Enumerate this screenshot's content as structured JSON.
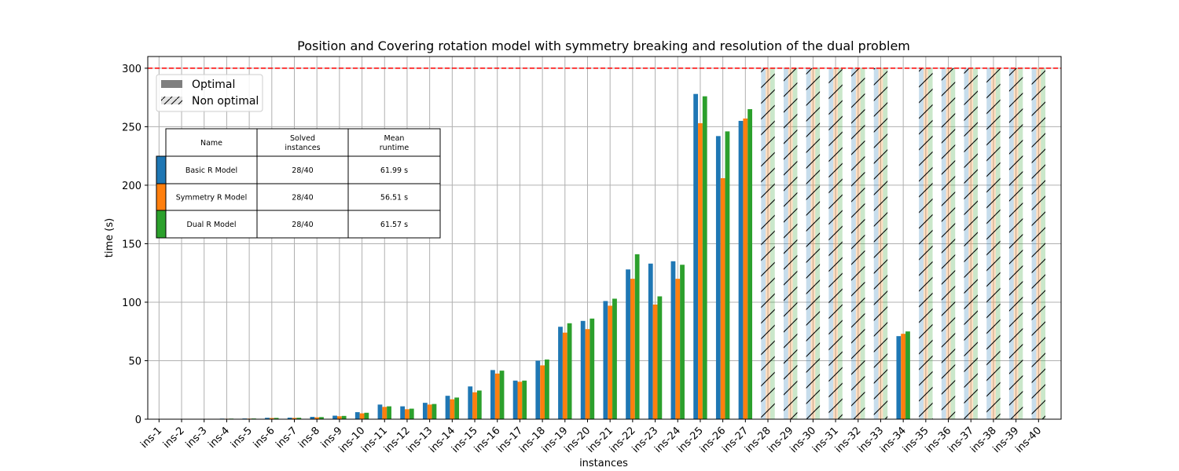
{
  "chart_data": {
    "type": "bar",
    "title": "Position and Covering rotation model with symmetry breaking and resolution of the dual problem",
    "xlabel": "instances",
    "ylabel": "time (s)",
    "ylim": [
      0,
      310
    ],
    "yticks": [
      0,
      50,
      100,
      150,
      200,
      250,
      300
    ],
    "grid": true,
    "timeout_line": 300,
    "categories": [
      "ins-1",
      "ins-2",
      "ins-3",
      "ins-4",
      "ins-5",
      "ins-6",
      "ins-7",
      "ins-8",
      "ins-9",
      "ins-10",
      "ins-11",
      "ins-12",
      "ins-13",
      "ins-14",
      "ins-15",
      "ins-16",
      "ins-17",
      "ins-18",
      "ins-19",
      "ins-20",
      "ins-21",
      "ins-22",
      "ins-23",
      "ins-24",
      "ins-25",
      "ins-26",
      "ins-27",
      "ins-28",
      "ins-29",
      "ins-30",
      "ins-31",
      "ins-32",
      "ins-33",
      "ins-34",
      "ins-35",
      "ins-36",
      "ins-37",
      "ins-38",
      "ins-39",
      "ins-40"
    ],
    "non_optimal_instances": [
      "ins-28",
      "ins-29",
      "ins-30",
      "ins-31",
      "ins-32",
      "ins-33",
      "ins-35",
      "ins-36",
      "ins-37",
      "ins-38",
      "ins-39",
      "ins-40"
    ],
    "series": [
      {
        "name": "Basic R Model",
        "color": "#1f77b4",
        "values": [
          0.1,
          0.2,
          0.3,
          0.5,
          0.6,
          1.2,
          1.3,
          2.0,
          3.0,
          6.0,
          12.5,
          11.0,
          14.0,
          20.0,
          28.0,
          42.0,
          33.0,
          50.0,
          79.0,
          84.0,
          101.0,
          128.0,
          133.0,
          135.0,
          278.0,
          242.0,
          255.0,
          300,
          300,
          300,
          300,
          300,
          300,
          71.0,
          300,
          300,
          300,
          300,
          300,
          300
        ]
      },
      {
        "name": "Symmetry R Model",
        "color": "#ff7f0e",
        "values": [
          0.1,
          0.2,
          0.3,
          0.4,
          0.5,
          1.0,
          1.1,
          1.6,
          2.5,
          5.0,
          10.5,
          8.5,
          12.5,
          17.0,
          23.0,
          39.0,
          32.0,
          46.0,
          74.0,
          77.0,
          97.0,
          120.0,
          98.0,
          120.0,
          253.0,
          206.0,
          257.0,
          300,
          300,
          300,
          300,
          300,
          300,
          73.0,
          300,
          300,
          300,
          300,
          300,
          300
        ]
      },
      {
        "name": "Dual R Model",
        "color": "#2ca02c",
        "values": [
          0.1,
          0.2,
          0.3,
          0.5,
          0.6,
          1.1,
          1.2,
          1.8,
          2.8,
          5.5,
          11.0,
          9.0,
          13.0,
          18.5,
          24.5,
          41.5,
          33.0,
          51.0,
          82.0,
          86.0,
          103.0,
          141.0,
          105.0,
          132.0,
          276.0,
          246.0,
          265.0,
          300,
          300,
          300,
          300,
          300,
          300,
          75.0,
          300,
          300,
          300,
          300,
          300,
          300
        ]
      }
    ],
    "legend": {
      "placement": "top-left",
      "items": [
        {
          "label": "Optimal",
          "style": "solid"
        },
        {
          "label": "Non optimal",
          "style": "hatched"
        }
      ]
    },
    "table": {
      "headers": [
        "Name",
        "Solved\ninstances",
        "Mean\nruntime"
      ],
      "rows": [
        {
          "color": "#1f77b4",
          "cells": [
            "Basic R Model",
            "28/40",
            "61.99 s"
          ]
        },
        {
          "color": "#ff7f0e",
          "cells": [
            "Symmetry R Model",
            "28/40",
            "56.51 s"
          ]
        },
        {
          "color": "#2ca02c",
          "cells": [
            "Dual R Model",
            "28/40",
            "61.57 s"
          ]
        }
      ]
    }
  }
}
